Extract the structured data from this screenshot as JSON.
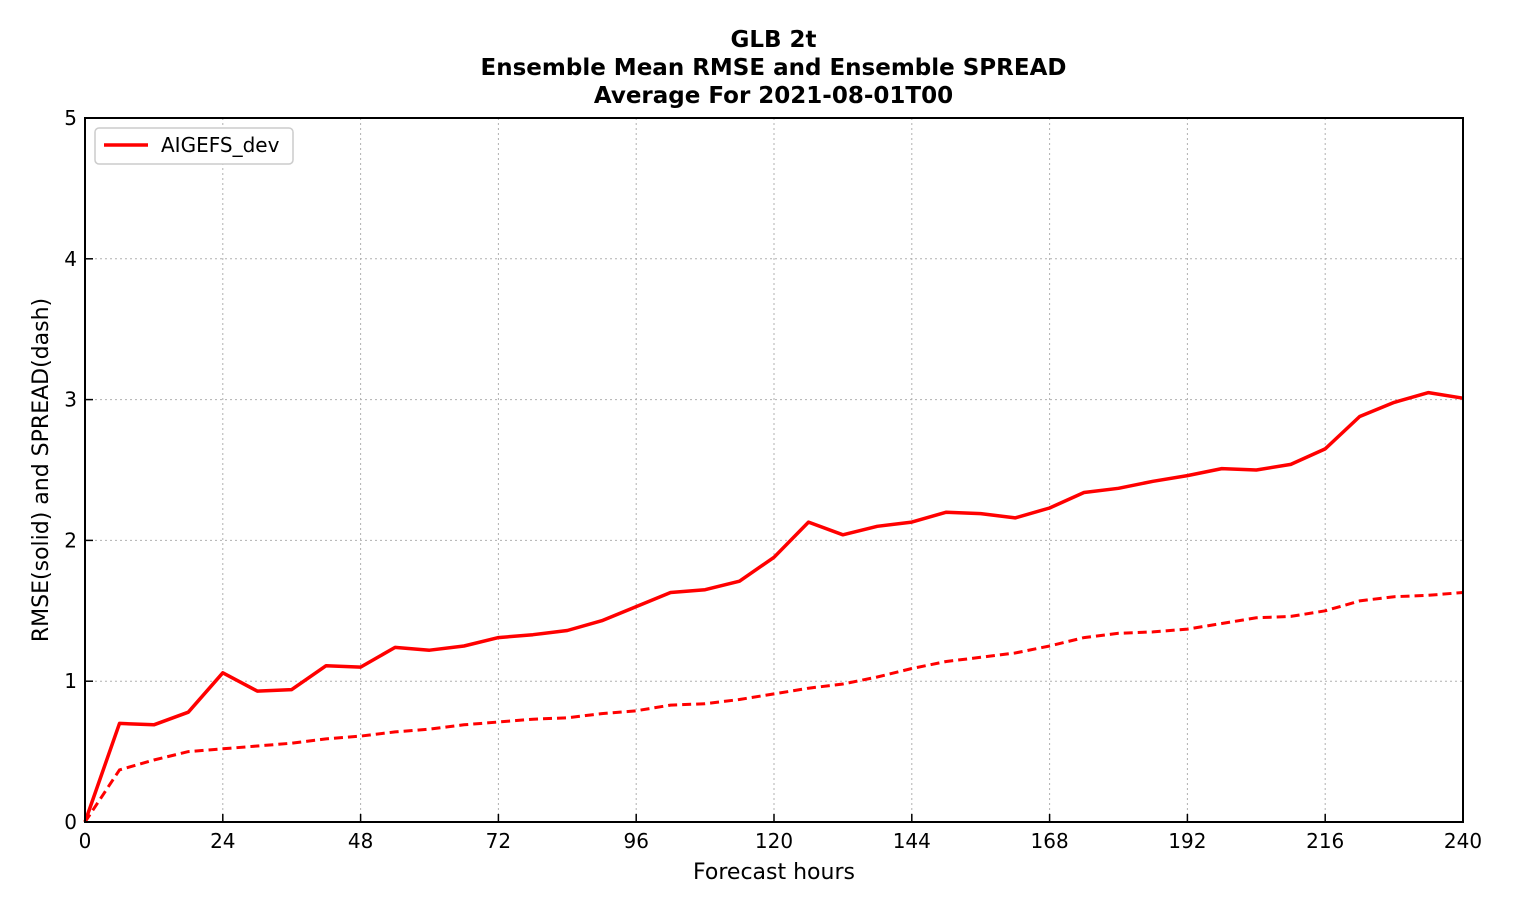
{
  "chart_data": {
    "type": "line",
    "title_lines": [
      "GLB 2t",
      "Ensemble Mean RMSE and Ensemble SPREAD",
      "Average For 2021-08-01T00"
    ],
    "xlabel": "Forecast hours",
    "ylabel": "RMSE(solid) and SPREAD(dash)",
    "xlim": [
      0,
      240
    ],
    "ylim": [
      0,
      5
    ],
    "xticks": [
      0,
      24,
      48,
      72,
      96,
      120,
      144,
      168,
      192,
      216,
      240
    ],
    "yticks": [
      0,
      1,
      2,
      3,
      4,
      5
    ],
    "grid": true,
    "legend_position": "top-left",
    "x": [
      0,
      6,
      12,
      18,
      24,
      30,
      36,
      42,
      48,
      54,
      60,
      66,
      72,
      78,
      84,
      90,
      96,
      102,
      108,
      114,
      120,
      126,
      132,
      138,
      144,
      150,
      156,
      162,
      168,
      174,
      180,
      186,
      192,
      198,
      204,
      210,
      216,
      222,
      228,
      234,
      240
    ],
    "series": [
      {
        "name": "AIGEFS_dev",
        "color": "#ff0000",
        "rmse": [
          0.0,
          0.7,
          0.69,
          0.78,
          1.06,
          0.93,
          0.94,
          1.11,
          1.1,
          1.24,
          1.22,
          1.25,
          1.31,
          1.33,
          1.36,
          1.43,
          1.53,
          1.63,
          1.65,
          1.71,
          1.88,
          2.13,
          2.04,
          2.1,
          2.13,
          2.2,
          2.19,
          2.16,
          2.23,
          2.34,
          2.37,
          2.42,
          2.46,
          2.51,
          2.5,
          2.54,
          2.65,
          2.88,
          2.98,
          3.05,
          3.01
        ],
        "spread": [
          0.0,
          0.37,
          0.44,
          0.5,
          0.52,
          0.54,
          0.56,
          0.59,
          0.61,
          0.64,
          0.66,
          0.69,
          0.71,
          0.73,
          0.74,
          0.77,
          0.79,
          0.83,
          0.84,
          0.87,
          0.91,
          0.95,
          0.98,
          1.03,
          1.09,
          1.14,
          1.17,
          1.2,
          1.25,
          1.31,
          1.34,
          1.35,
          1.37,
          1.41,
          1.45,
          1.46,
          1.5,
          1.57,
          1.6,
          1.61,
          1.63
        ]
      }
    ]
  }
}
